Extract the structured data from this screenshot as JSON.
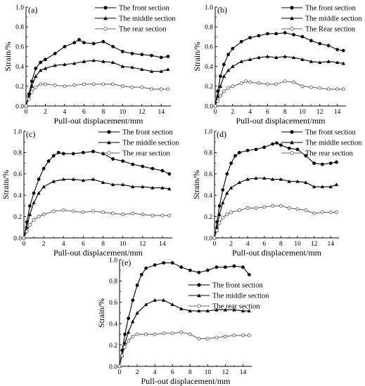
{
  "chart_data": [
    {
      "type": "line",
      "panel_label": "(a)",
      "xlabel": "Pull-out displacement/mm",
      "ylabel": "Strain/%",
      "xlim": [
        0,
        15
      ],
      "ylim": [
        0,
        1.0
      ],
      "xticks": [
        0,
        2,
        4,
        6,
        8,
        10,
        12,
        14
      ],
      "yticks": [
        0.0,
        0.2,
        0.4,
        0.6,
        0.8,
        1.0
      ],
      "legend_position": "top-right",
      "series": [
        {
          "name": "The front section",
          "marker": "filled-circle",
          "x": [
            0,
            0.3,
            0.6,
            1,
            1.5,
            2,
            3,
            4,
            5,
            5.5,
            6,
            7,
            8,
            9,
            10,
            11,
            12,
            13,
            14,
            14.7
          ],
          "y": [
            0,
            0.12,
            0.25,
            0.38,
            0.44,
            0.47,
            0.53,
            0.6,
            0.64,
            0.67,
            0.64,
            0.63,
            0.65,
            0.6,
            0.55,
            0.53,
            0.52,
            0.51,
            0.49,
            0.5
          ]
        },
        {
          "name": "The middle section",
          "marker": "filled-triangle",
          "x": [
            0,
            0.3,
            0.6,
            1,
            1.5,
            2,
            3,
            4,
            5,
            6,
            7,
            8,
            9,
            10,
            11,
            12,
            13,
            14,
            14.7
          ],
          "y": [
            0,
            0.1,
            0.2,
            0.3,
            0.36,
            0.38,
            0.41,
            0.42,
            0.43,
            0.45,
            0.46,
            0.45,
            0.44,
            0.4,
            0.39,
            0.37,
            0.35,
            0.35,
            0.37
          ]
        },
        {
          "name": "The rear section",
          "marker": "open-circle",
          "x": [
            0,
            0.3,
            0.6,
            1,
            1.5,
            2,
            3,
            4,
            5,
            6,
            7,
            8,
            9,
            10,
            11,
            12,
            13,
            14,
            14.7
          ],
          "y": [
            0,
            0.07,
            0.14,
            0.19,
            0.22,
            0.22,
            0.21,
            0.2,
            0.21,
            0.22,
            0.22,
            0.22,
            0.22,
            0.2,
            0.19,
            0.19,
            0.17,
            0.17,
            0.17
          ]
        }
      ]
    },
    {
      "type": "line",
      "panel_label": "(b)",
      "xlabel": "Pull-out displacement/mm",
      "ylabel": "Strain/%",
      "xlim": [
        0,
        15
      ],
      "ylim": [
        0,
        1.0
      ],
      "xticks": [
        0,
        2,
        4,
        6,
        8,
        10,
        12,
        14
      ],
      "yticks": [
        0.0,
        0.2,
        0.4,
        0.6,
        0.8,
        1.0
      ],
      "legend_position": "top-right",
      "series": [
        {
          "name": "The front section",
          "marker": "filled-circle",
          "x": [
            0,
            0.3,
            0.6,
            1,
            1.5,
            2,
            3,
            4,
            5,
            6,
            7,
            8,
            9,
            10,
            11,
            12,
            13,
            14,
            14.7
          ],
          "y": [
            0,
            0.15,
            0.3,
            0.42,
            0.52,
            0.58,
            0.65,
            0.69,
            0.71,
            0.73,
            0.73,
            0.74,
            0.72,
            0.7,
            0.66,
            0.63,
            0.61,
            0.57,
            0.56
          ]
        },
        {
          "name": "The middle section",
          "marker": "filled-triangle",
          "x": [
            0,
            0.3,
            0.6,
            1,
            1.5,
            2,
            3,
            4,
            5,
            6,
            7,
            8,
            9,
            10,
            11,
            12,
            13,
            14,
            14.7
          ],
          "y": [
            0,
            0.1,
            0.2,
            0.3,
            0.36,
            0.4,
            0.45,
            0.47,
            0.49,
            0.5,
            0.49,
            0.5,
            0.49,
            0.47,
            0.45,
            0.44,
            0.45,
            0.44,
            0.43
          ]
        },
        {
          "name": "The Rear section",
          "marker": "open-circle",
          "x": [
            0,
            0.3,
            0.6,
            1,
            1.5,
            2,
            3,
            3.5,
            4,
            5,
            6,
            7,
            8,
            9,
            10,
            11,
            12,
            13,
            14,
            14.7
          ],
          "y": [
            0,
            0.05,
            0.1,
            0.15,
            0.18,
            0.2,
            0.23,
            0.25,
            0.24,
            0.23,
            0.22,
            0.22,
            0.25,
            0.24,
            0.2,
            0.19,
            0.18,
            0.17,
            0.17,
            0.17
          ]
        }
      ]
    },
    {
      "type": "line",
      "panel_label": "(c)",
      "xlabel": "Pull-out displacement/mm",
      "ylabel": "Strain/%",
      "xlim": [
        0,
        15
      ],
      "ylim": [
        0,
        1.0
      ],
      "xticks": [
        0,
        2,
        4,
        6,
        8,
        10,
        12,
        14
      ],
      "yticks": [
        0.0,
        0.2,
        0.4,
        0.6,
        0.8,
        1.0
      ],
      "legend_position": "top-right",
      "series": [
        {
          "name": "The front section",
          "marker": "filled-circle",
          "x": [
            0,
            0.3,
            0.6,
            1,
            1.5,
            2,
            2.5,
            3,
            3.5,
            4,
            5,
            6,
            7,
            8,
            9,
            10,
            11,
            12,
            13,
            14,
            14.7
          ],
          "y": [
            0,
            0.15,
            0.3,
            0.42,
            0.55,
            0.65,
            0.72,
            0.77,
            0.8,
            0.79,
            0.79,
            0.8,
            0.81,
            0.79,
            0.74,
            0.72,
            0.69,
            0.67,
            0.65,
            0.63,
            0.6
          ]
        },
        {
          "name": "The middle section",
          "marker": "filled-triangle",
          "x": [
            0,
            0.3,
            0.6,
            1,
            1.5,
            2,
            3,
            4,
            5,
            6,
            7,
            8,
            9,
            10,
            11,
            12,
            13,
            14,
            14.7
          ],
          "y": [
            0,
            0.1,
            0.22,
            0.33,
            0.42,
            0.48,
            0.53,
            0.55,
            0.55,
            0.54,
            0.55,
            0.52,
            0.5,
            0.5,
            0.48,
            0.48,
            0.47,
            0.47,
            0.46
          ]
        },
        {
          "name": "The rear section",
          "marker": "open-circle",
          "x": [
            0,
            0.3,
            0.6,
            1,
            1.5,
            2,
            3,
            4,
            5,
            6,
            7,
            8,
            9,
            10,
            11,
            12,
            13,
            14,
            14.7
          ],
          "y": [
            0,
            0.06,
            0.12,
            0.17,
            0.2,
            0.22,
            0.25,
            0.26,
            0.25,
            0.24,
            0.25,
            0.24,
            0.23,
            0.22,
            0.23,
            0.22,
            0.21,
            0.21,
            0.21
          ]
        }
      ]
    },
    {
      "type": "line",
      "panel_label": "(d)",
      "xlabel": "Pull-out displacement/mm",
      "ylabel": "Strain/%",
      "xlim": [
        0,
        15
      ],
      "ylim": [
        0,
        1.0
      ],
      "xticks": [
        0,
        2,
        4,
        6,
        8,
        10,
        12,
        14
      ],
      "yticks": [
        0.0,
        0.2,
        0.4,
        0.6,
        0.8,
        1.0
      ],
      "legend_position": "top-right",
      "series": [
        {
          "name": "The front section",
          "marker": "filled-circle",
          "x": [
            0,
            0.3,
            0.6,
            1,
            1.5,
            2,
            2.5,
            3,
            4,
            5,
            6,
            7,
            7.5,
            8,
            9,
            10,
            11,
            12,
            13,
            14,
            14.7
          ],
          "y": [
            0,
            0.15,
            0.3,
            0.45,
            0.6,
            0.7,
            0.77,
            0.8,
            0.82,
            0.83,
            0.85,
            0.88,
            0.89,
            0.87,
            0.84,
            0.83,
            0.77,
            0.7,
            0.69,
            0.7,
            0.71
          ]
        },
        {
          "name": "The middle section",
          "marker": "filled-triangle",
          "x": [
            0,
            0.3,
            0.6,
            1,
            1.5,
            2,
            3,
            4,
            5,
            6,
            7,
            8,
            9,
            10,
            11,
            12,
            13,
            14,
            14.7
          ],
          "y": [
            0,
            0.1,
            0.22,
            0.33,
            0.42,
            0.47,
            0.52,
            0.55,
            0.56,
            0.56,
            0.55,
            0.55,
            0.53,
            0.53,
            0.52,
            0.48,
            0.48,
            0.48,
            0.5
          ]
        },
        {
          "name": "The rear section",
          "marker": "open-circle",
          "x": [
            0,
            0.3,
            0.6,
            1,
            1.5,
            2,
            3,
            4,
            5,
            6,
            7,
            8,
            9,
            10,
            11,
            12,
            13,
            14,
            14.7
          ],
          "y": [
            0,
            0.07,
            0.14,
            0.19,
            0.22,
            0.24,
            0.26,
            0.28,
            0.28,
            0.29,
            0.3,
            0.3,
            0.28,
            0.27,
            0.26,
            0.23,
            0.24,
            0.24,
            0.24
          ]
        }
      ]
    },
    {
      "type": "line",
      "panel_label": "(e)",
      "xlabel": "Pull-out displacement/mm",
      "ylabel": "Strain/%",
      "xlim": [
        0,
        15
      ],
      "ylim": [
        0,
        1.0
      ],
      "xticks": [
        0,
        2,
        4,
        6,
        8,
        10,
        12,
        14
      ],
      "yticks": [
        0.0,
        0.2,
        0.4,
        0.6,
        0.8,
        1.0
      ],
      "legend_position": "right",
      "series": [
        {
          "name": "The front section",
          "marker": "filled-circle",
          "x": [
            0,
            0.3,
            0.6,
            1,
            1.5,
            2,
            2.5,
            3,
            4,
            5,
            6,
            7,
            8,
            9,
            10,
            11,
            12,
            13,
            14,
            14.7
          ],
          "y": [
            0,
            0.15,
            0.3,
            0.45,
            0.62,
            0.76,
            0.86,
            0.92,
            0.95,
            0.97,
            0.97,
            0.93,
            0.9,
            0.88,
            0.9,
            0.93,
            0.93,
            0.94,
            0.93,
            0.86
          ]
        },
        {
          "name": "The middle section",
          "marker": "filled-triangle",
          "x": [
            0,
            0.3,
            0.6,
            1,
            1.5,
            2,
            3,
            4,
            5,
            6,
            7,
            8,
            9,
            10,
            11,
            12,
            13,
            14,
            14.7
          ],
          "y": [
            0,
            0.1,
            0.22,
            0.32,
            0.42,
            0.5,
            0.58,
            0.62,
            0.62,
            0.58,
            0.54,
            0.52,
            0.52,
            0.52,
            0.53,
            0.53,
            0.53,
            0.52,
            0.52
          ]
        },
        {
          "name": "The rear section",
          "marker": "open-circle",
          "x": [
            0,
            0.3,
            0.6,
            1,
            1.5,
            2,
            3,
            4,
            5,
            6,
            7,
            8,
            9,
            10,
            11,
            12,
            13,
            14,
            14.7
          ],
          "y": [
            0,
            0.1,
            0.18,
            0.24,
            0.28,
            0.3,
            0.3,
            0.3,
            0.31,
            0.31,
            0.32,
            0.3,
            0.26,
            0.26,
            0.27,
            0.28,
            0.29,
            0.29,
            0.29
          ]
        }
      ]
    }
  ]
}
